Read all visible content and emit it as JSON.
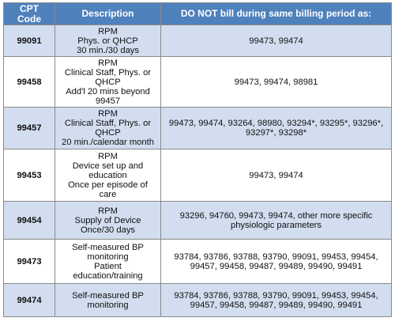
{
  "header": {
    "code": [
      "CPT",
      "Code"
    ],
    "description": "Description",
    "exclusions": "DO NOT bill during same billing period as:"
  },
  "rows": [
    {
      "code": "99091",
      "description": [
        "RPM",
        "Phys. or QHCP",
        "30 min./30 days"
      ],
      "exclusions": [
        "99473, 99474"
      ]
    },
    {
      "code": "99458",
      "description": [
        "RPM",
        "Clinical Staff, Phys. or",
        "QHCP",
        "Add'l 20 mins beyond",
        "99457"
      ],
      "exclusions": [
        "99473, 99474, 98981"
      ]
    },
    {
      "code": "99457",
      "description": [
        "RPM",
        "Clinical Staff, Phys. or",
        "QHCP",
        "20 min./calendar month"
      ],
      "exclusions": [
        "99473, 99474, 93264, 98980, 93294*, 93295*, 93296*,",
        "93297*, 93298*"
      ]
    },
    {
      "code": "99453",
      "description": [
        "RPM",
        "Device set up and",
        "education",
        "Once per episode of",
        "care"
      ],
      "exclusions": [
        "99473, 99474"
      ]
    },
    {
      "code": "99454",
      "description": [
        "RPM",
        "Supply of Device",
        "Once/30 days"
      ],
      "exclusions": [
        "93296, 94760, 99473, 99474, other more specific",
        "physiologic parameters"
      ]
    },
    {
      "code": "99473",
      "description": [
        "Self-measured BP",
        "monitoring",
        "Patient",
        "education/training"
      ],
      "exclusions": [
        "93784, 93786, 93788, 93790, 99091, 99453, 99454,",
        "99457, 99458, 99487, 99489, 99490, 99491"
      ]
    },
    {
      "code": "99474",
      "description": [
        "Self-measured BP",
        "monitoring"
      ],
      "exclusions": [
        "93784, 93786, 93788, 93790, 99091, 99453, 99454,",
        "99457, 99458, 99487, 99489, 99490, 99491"
      ]
    }
  ]
}
